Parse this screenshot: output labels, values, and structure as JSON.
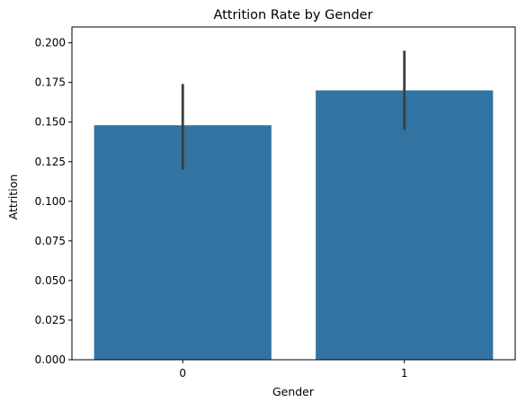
{
  "chart_data": {
    "type": "bar",
    "title": "Attrition Rate by Gender",
    "xlabel": "Gender",
    "ylabel": "Attrition",
    "categories": [
      "0",
      "1"
    ],
    "values": [
      0.148,
      0.17
    ],
    "error_bars": [
      {
        "low": 0.12,
        "high": 0.174
      },
      {
        "low": 0.145,
        "high": 0.195
      }
    ],
    "ylim": [
      0,
      0.21
    ],
    "yticks": [
      0,
      0.025,
      0.05,
      0.075,
      0.1,
      0.125,
      0.15,
      0.175,
      0.2
    ],
    "ytick_labels": [
      "0.000",
      "0.025",
      "0.050",
      "0.075",
      "0.100",
      "0.125",
      "0.150",
      "0.175",
      "0.200"
    ],
    "bar_color": "#3274a1",
    "error_color": "#3d3d3d",
    "grid": false,
    "legend": "none"
  }
}
